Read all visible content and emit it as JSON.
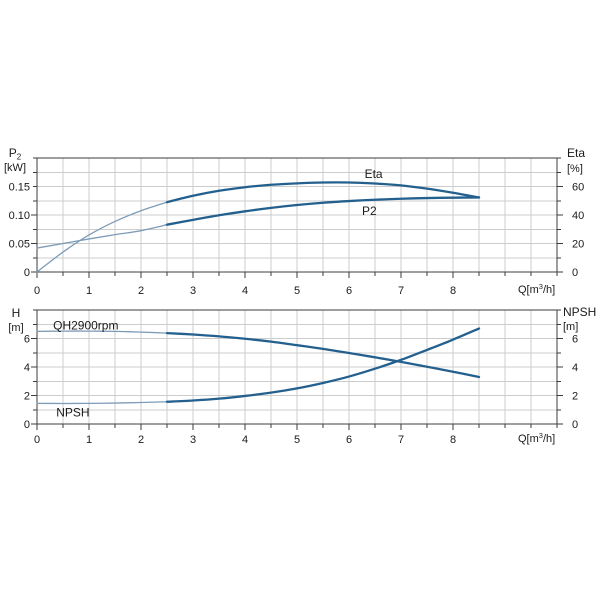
{
  "figure_background": "#ffffff",
  "colors": {
    "curve_main": "#23608e",
    "curve_light": "#7d9cb8",
    "grid": "#cccccc",
    "axis": "#3d3d3d",
    "text": "#1a1a1a"
  },
  "chart_data": [
    {
      "id": "p2-eta",
      "type": "line",
      "title": "",
      "x_axis": {
        "label_parts": [
          {
            "t": "Q[m"
          },
          {
            "t": "3",
            "style": "sup"
          },
          {
            "t": "/h]"
          }
        ],
        "range": [
          0,
          10
        ],
        "minor_step": 0.5,
        "major_ticks": [
          {
            "v": 0,
            "label": "0"
          },
          {
            "v": 1,
            "label": "1"
          },
          {
            "v": 2,
            "label": "2"
          },
          {
            "v": 3,
            "label": "3"
          },
          {
            "v": 4,
            "label": "4"
          },
          {
            "v": 5,
            "label": "5"
          },
          {
            "v": 6,
            "label": "6"
          },
          {
            "v": 7,
            "label": "7"
          },
          {
            "v": 8,
            "label": "8"
          }
        ]
      },
      "left_axis": {
        "title_parts": [
          {
            "t": "P"
          },
          {
            "t": "2",
            "style": "sub"
          }
        ],
        "unit": "[kW]",
        "range": [
          0,
          0.2
        ],
        "minor_step": 0.025,
        "major_ticks": [
          {
            "v": 0,
            "label": "0"
          },
          {
            "v": 0.05,
            "label": "0.05"
          },
          {
            "v": 0.1,
            "label": "0.10"
          },
          {
            "v": 0.15,
            "label": "0.15"
          }
        ]
      },
      "right_axis": {
        "title_parts": [
          {
            "t": "Eta"
          }
        ],
        "unit": "[%]",
        "range": [
          0,
          80
        ],
        "minor_step": 10,
        "major_ticks": [
          {
            "v": 0,
            "label": "0"
          },
          {
            "v": 20,
            "label": "20"
          },
          {
            "v": 40,
            "label": "40"
          },
          {
            "v": 60,
            "label": "60"
          }
        ]
      },
      "series": [
        {
          "name": "Eta",
          "axis": "right",
          "split_x": 2.5,
          "x": [
            0,
            0.5,
            1,
            1.5,
            2,
            2.5,
            3,
            3.5,
            4,
            4.5,
            5,
            5.5,
            6,
            6.5,
            7,
            7.5,
            8,
            8.5
          ],
          "y": [
            0,
            14,
            26,
            35.5,
            43,
            49,
            53.5,
            57,
            59.5,
            61.2,
            62.2,
            62.8,
            62.8,
            62.1,
            60.8,
            58.5,
            55.6,
            52.3
          ],
          "label": {
            "text": "Eta",
            "x": 6.3,
            "y": 66
          }
        },
        {
          "name": "P2",
          "axis": "left",
          "split_x": 2.5,
          "x": [
            0,
            0.5,
            1,
            1.5,
            2,
            2.5,
            3,
            3.5,
            4,
            4.5,
            5,
            5.5,
            6,
            6.5,
            7,
            7.5,
            8,
            8.5
          ],
          "y": [
            0.042,
            0.05,
            0.058,
            0.0655,
            0.0725,
            0.083,
            0.0915,
            0.0995,
            0.1065,
            0.1125,
            0.1175,
            0.1215,
            0.1245,
            0.1268,
            0.1285,
            0.1297,
            0.1304,
            0.1308
          ],
          "label": {
            "text": "P2",
            "x": 6.25,
            "y": 0.1
          }
        }
      ]
    },
    {
      "id": "qh-npsh",
      "type": "line",
      "title": "",
      "x_axis": {
        "label_parts": [
          {
            "t": "Q[m"
          },
          {
            "t": "3",
            "style": "sup"
          },
          {
            "t": "/h]"
          }
        ],
        "range": [
          0,
          10
        ],
        "minor_step": 0.5,
        "major_ticks": [
          {
            "v": 0,
            "label": "0"
          },
          {
            "v": 1,
            "label": "1"
          },
          {
            "v": 2,
            "label": "2"
          },
          {
            "v": 3,
            "label": "3"
          },
          {
            "v": 4,
            "label": "4"
          },
          {
            "v": 5,
            "label": "5"
          },
          {
            "v": 6,
            "label": "6"
          },
          {
            "v": 7,
            "label": "7"
          },
          {
            "v": 8,
            "label": "8"
          }
        ]
      },
      "left_axis": {
        "title_parts": [
          {
            "t": "H"
          }
        ],
        "unit": "[m]",
        "range": [
          0,
          8
        ],
        "minor_step": 1,
        "major_ticks": [
          {
            "v": 0,
            "label": "0"
          },
          {
            "v": 2,
            "label": "2"
          },
          {
            "v": 4,
            "label": "4"
          },
          {
            "v": 6,
            "label": "6"
          }
        ]
      },
      "right_axis": {
        "title_parts": [
          {
            "t": "NPSH"
          }
        ],
        "unit": "[m]",
        "range": [
          0,
          8
        ],
        "minor_step": 1,
        "major_ticks": [
          {
            "v": 0,
            "label": "0"
          },
          {
            "v": 2,
            "label": "2"
          },
          {
            "v": 4,
            "label": "4"
          },
          {
            "v": 6,
            "label": "6"
          }
        ]
      },
      "series": [
        {
          "name": "QH2900rpm",
          "axis": "left",
          "split_x": 2.5,
          "x": [
            0,
            0.5,
            1,
            1.5,
            2,
            2.5,
            3,
            3.5,
            4,
            4.5,
            5,
            5.5,
            6,
            6.5,
            7,
            7.5,
            8,
            8.5
          ],
          "y": [
            6.5,
            6.52,
            6.52,
            6.5,
            6.45,
            6.38,
            6.28,
            6.15,
            5.98,
            5.78,
            5.53,
            5.27,
            4.98,
            4.68,
            4.36,
            4.02,
            3.67,
            3.3
          ],
          "label": {
            "text": "QH2900rpm",
            "x": 0.31,
            "y": 6.62
          }
        },
        {
          "name": "NPSH",
          "axis": "right",
          "split_x": 2.5,
          "x": [
            0,
            0.5,
            1,
            1.5,
            2,
            2.5,
            3,
            3.5,
            4,
            4.5,
            5,
            5.5,
            6,
            6.5,
            7,
            7.5,
            8,
            8.5
          ],
          "y": [
            1.45,
            1.44,
            1.45,
            1.47,
            1.51,
            1.56,
            1.65,
            1.78,
            1.97,
            2.2,
            2.5,
            2.88,
            3.33,
            3.88,
            4.5,
            5.2,
            5.92,
            6.7
          ],
          "label": {
            "text": "NPSH",
            "x": 0.37,
            "y": 0.52
          }
        }
      ]
    }
  ]
}
